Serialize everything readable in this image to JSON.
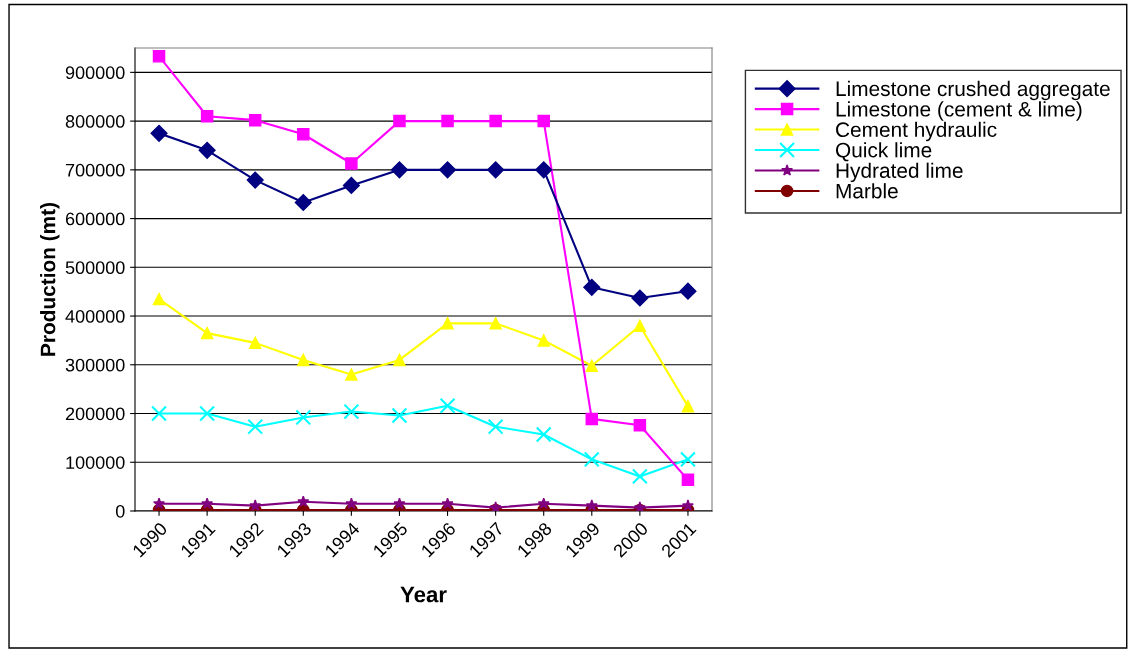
{
  "chart_data": {
    "type": "line",
    "xlabel": "Year",
    "ylabel": "Production (mt)",
    "categories": [
      "1990",
      "1991",
      "1992",
      "1993",
      "1994",
      "1995",
      "1996",
      "1997",
      "1998",
      "1999",
      "2000",
      "2001"
    ],
    "series": [
      {
        "name": "Limestone crushed aggregate",
        "color": "#000080",
        "marker": "diamond",
        "values": [
          775000,
          740000,
          679000,
          633000,
          668000,
          700000,
          700000,
          700000,
          700000,
          459000,
          437000,
          451000
        ]
      },
      {
        "name": "Limestone (cement & lime)",
        "color": "#ff00ff",
        "marker": "square",
        "values": [
          933000,
          810000,
          802000,
          773000,
          713000,
          800000,
          800000,
          800000,
          800000,
          189000,
          176000,
          64000
        ]
      },
      {
        "name": "Cement hydraulic",
        "color": "#ffff00",
        "marker": "triangle",
        "values": [
          435000,
          365000,
          345000,
          310000,
          280000,
          310000,
          385000,
          385000,
          350000,
          298000,
          380000,
          215000
        ]
      },
      {
        "name": "Quick lime",
        "color": "#00ffff",
        "marker": "cross",
        "values": [
          200000,
          200000,
          173000,
          192000,
          204000,
          196000,
          216000,
          173000,
          157000,
          106000,
          71000,
          106000
        ]
      },
      {
        "name": "Hydrated lime",
        "color": "#800080",
        "marker": "star",
        "values": [
          15000,
          15000,
          11000,
          19000,
          15000,
          15000,
          15000,
          7000,
          15000,
          11000,
          7000,
          11000
        ]
      },
      {
        "name": "Marble",
        "color": "#800000",
        "marker": "circle",
        "values": [
          2000,
          2000,
          2000,
          2000,
          2000,
          2000,
          2000,
          2000,
          2000,
          2000,
          2000,
          2000
        ]
      }
    ],
    "ylim": [
      0,
      950000
    ],
    "yticks": [
      0,
      100000,
      200000,
      300000,
      400000,
      500000,
      600000,
      700000,
      800000,
      900000
    ],
    "grid": "y",
    "legend": "top right",
    "line_style": "solid"
  }
}
